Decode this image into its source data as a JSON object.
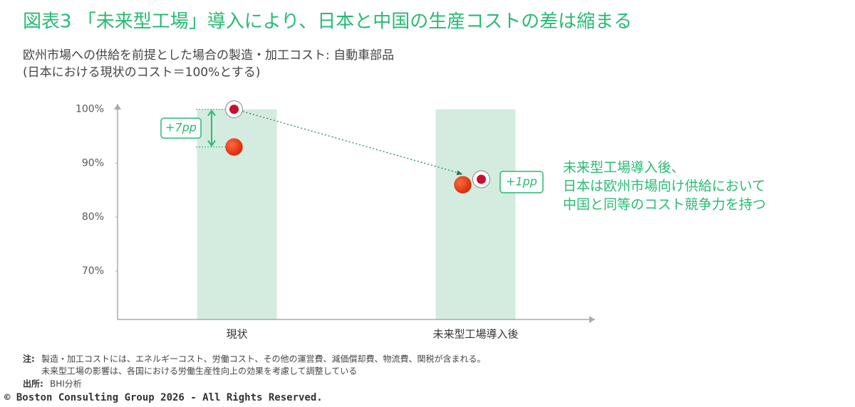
{
  "chart_data": {
    "type": "bar-dot",
    "title": "図表3 「未来型工場」導入により、日本と中国の生産コストの差は縮まる",
    "subtitle": [
      "欧州市場への供給を前提とした場合の製造・加工コスト: 自動車部品",
      "(日本における現状のコスト＝100%とする)"
    ],
    "categories": [
      "現状",
      "未来型工場導入後"
    ],
    "bars": {
      "values": [
        100,
        100
      ],
      "color": "#d3ecdf"
    },
    "series": [
      {
        "values": [
          100,
          87
        ],
        "color": "#c8102e",
        "marker": "flag"
      },
      {
        "values": [
          93,
          86
        ],
        "color": "#e53712",
        "marker": "ball"
      }
    ],
    "ylim": [
      61,
      101
    ],
    "yticks": [
      {
        "value": 70,
        "label": "70%"
      },
      {
        "value": 80,
        "label": "80%"
      },
      {
        "value": 90,
        "label": "90%"
      },
      {
        "value": 100,
        "label": "100%"
      }
    ],
    "gap_labels": [
      "+7pp",
      "+1pp"
    ],
    "annotation": [
      "未来型工場導入後、",
      "日本は欧州市場向け供給において",
      "中国と同等のコスト競争力を持つ"
    ],
    "note_label": "注:",
    "notes": [
      "製造・加工コストには、エネルギーコスト、労働コスト、その他の運営費、減価償却費、物流費、関税が含まれる。",
      "未来型工場の影響は、各国における労働生産性向上の効果を考慮して調整している"
    ],
    "source_label": "出所:",
    "source": "BHI分析",
    "copyright": "© Boston Consulting Group 2026 - All Rights Reserved."
  }
}
